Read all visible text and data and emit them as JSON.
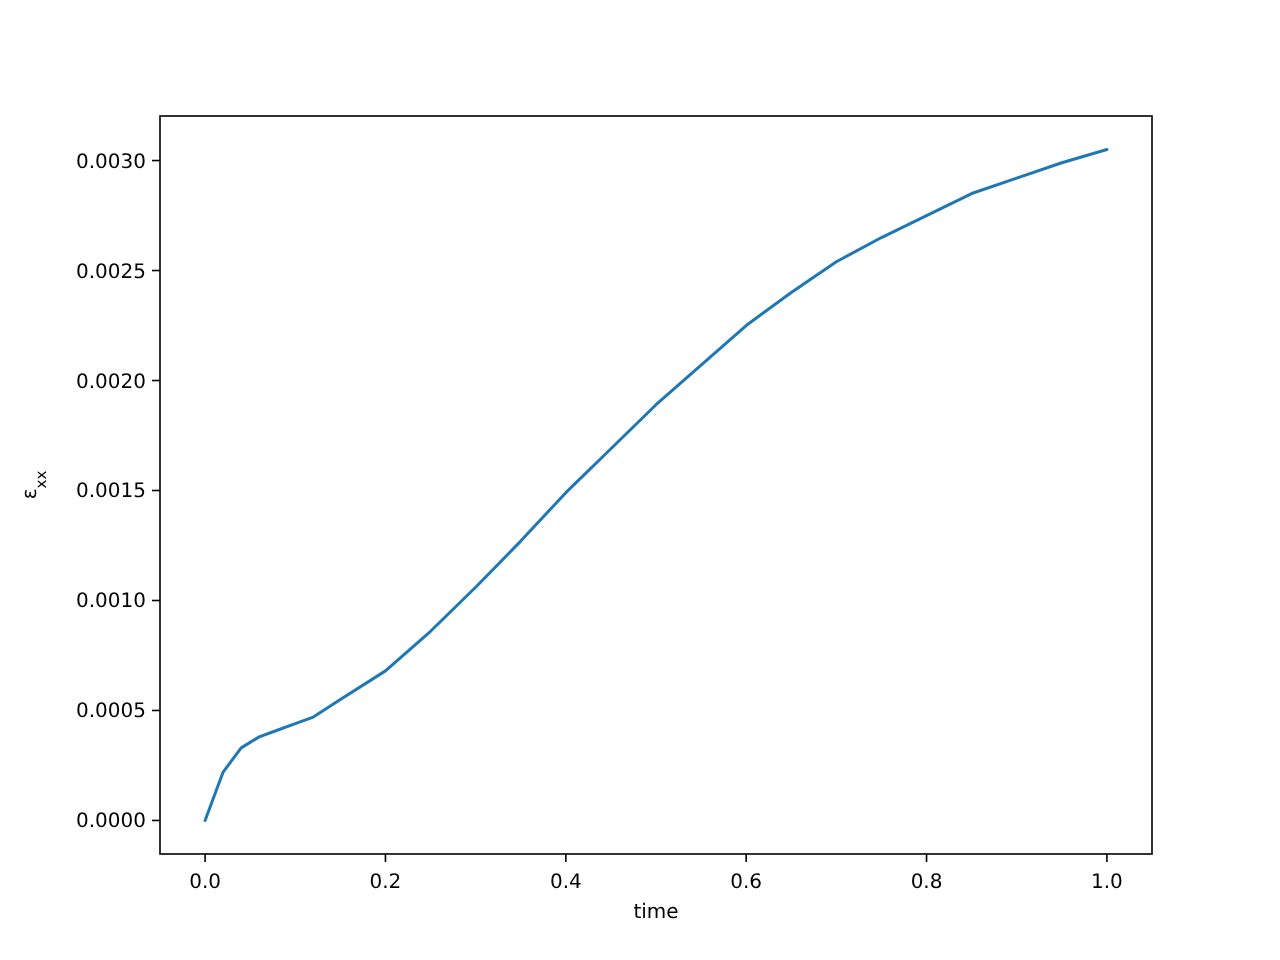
{
  "chart_data": {
    "type": "line",
    "xlabel": "time",
    "ylabel": "ε$_{xx}$",
    "x": [
      0,
      0.02,
      0.04,
      0.06,
      0.08,
      0.1,
      0.12,
      0.15,
      0.2,
      0.25,
      0.3,
      0.35,
      0.4,
      0.45,
      0.5,
      0.55,
      0.6,
      0.65,
      0.7,
      0.75,
      0.8,
      0.85,
      0.9,
      0.95,
      1.0
    ],
    "series": [
      {
        "color": "#1f77b4",
        "values": [
          0,
          0.00022,
          0.00033,
          0.00038,
          0.00041,
          0.00044,
          0.00047,
          0.00055,
          0.00068,
          0.00086,
          0.00106,
          0.00127,
          0.00149,
          0.00169,
          0.00189,
          0.00207,
          0.00225,
          0.0024,
          0.00254,
          0.00265,
          0.00275,
          0.00285,
          0.00292,
          0.00299,
          0.00305
        ]
      }
    ],
    "xlim": [
      -0.05,
      1.05
    ],
    "ylim": [
      -0.0001525,
      0.0032025
    ],
    "xticks": [
      {
        "value": 0,
        "label": "0.0"
      },
      {
        "value": 0.2,
        "label": "0.2"
      },
      {
        "value": 0.4,
        "label": "0.4"
      },
      {
        "value": 0.6,
        "label": "0.6"
      },
      {
        "value": 0.8,
        "label": "0.8"
      },
      {
        "value": 1,
        "label": "1.0"
      }
    ],
    "yticks": [
      {
        "value": 0,
        "label": "0.0000"
      },
      {
        "value": 0.0005,
        "label": "0.0005"
      },
      {
        "value": 0.001,
        "label": "0.0010"
      },
      {
        "value": 0.0015,
        "label": "0.0015"
      },
      {
        "value": 0.002,
        "label": "0.0020"
      },
      {
        "value": 0.0025,
        "label": "0.0025"
      },
      {
        "value": 0.003,
        "label": "0.0030"
      }
    ],
    "grid": false,
    "marker": "none",
    "line_style": "solid"
  }
}
